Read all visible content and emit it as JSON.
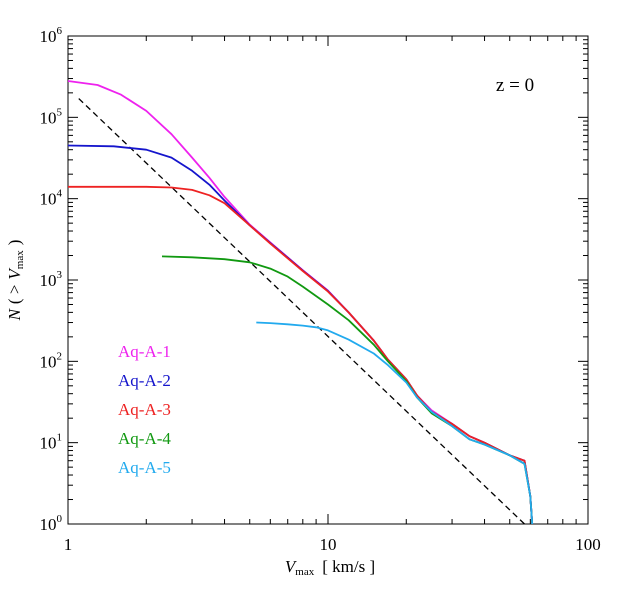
{
  "chart_data": {
    "type": "line",
    "xscale": "log",
    "yscale": "log",
    "xlim": [
      1,
      100
    ],
    "ylim": [
      1,
      1000000
    ],
    "grid": false,
    "legend_position": "bottom-left",
    "xlabel": {
      "main": "V",
      "sub": "max",
      "units": "[ km/s ]"
    },
    "ylabel": {
      "pre": "N",
      "open": "( >",
      "main": "V",
      "sub": "max",
      "close": ")"
    },
    "annotation": "z = 0",
    "x_ticks": [
      {
        "value": 1,
        "label": "1"
      },
      {
        "value": 10,
        "label": "10"
      },
      {
        "value": 100,
        "label": "100"
      }
    ],
    "y_ticks": [
      {
        "value": 1,
        "base": "10",
        "exp": "0"
      },
      {
        "value": 10,
        "base": "10",
        "exp": "1"
      },
      {
        "value": 100,
        "base": "10",
        "exp": "2"
      },
      {
        "value": 1000,
        "base": "10",
        "exp": "3"
      },
      {
        "value": 10000,
        "base": "10",
        "exp": "4"
      },
      {
        "value": 100000,
        "base": "10",
        "exp": "5"
      },
      {
        "value": 1000000,
        "base": "10",
        "exp": "6"
      }
    ],
    "reference_line": {
      "style": "dashed",
      "color": "#000000",
      "x": [
        1.1,
        57
      ],
      "y": [
        170000,
        1
      ]
    },
    "series": [
      {
        "name": "Aq-A-1",
        "color": "#ee22ee",
        "x": [
          1.0,
          1.3,
          1.6,
          2.0,
          2.5,
          3.0,
          3.5,
          4.0,
          5.0,
          6.0,
          7.0,
          8.0,
          10.0,
          12.0,
          15.0,
          17.0,
          20.0,
          22.0,
          25.0,
          30.0,
          35.0,
          40.0,
          50.0,
          57.0,
          60.0,
          61.0
        ],
        "y": [
          280000,
          250000,
          190000,
          120000,
          62000,
          32000,
          18000,
          10500,
          4800,
          2900,
          1900,
          1320,
          740,
          400,
          180,
          105,
          60,
          38,
          25,
          17,
          12,
          10,
          7,
          6,
          2.2,
          1
        ]
      },
      {
        "name": "Aq-A-2",
        "color": "#1515cc",
        "x": [
          1.0,
          1.5,
          2.0,
          2.5,
          3.0,
          3.5,
          4.0,
          5.0,
          6.0,
          7.0,
          8.0,
          10.0,
          12.0,
          15.0,
          17.0,
          20.0,
          22.0,
          25.0,
          30.0,
          35.0,
          40.0,
          50.0,
          57.0,
          60.0,
          61.0
        ],
        "y": [
          45000,
          44000,
          40000,
          32000,
          22000,
          14800,
          9500,
          4700,
          2850,
          1880,
          1310,
          730,
          400,
          180,
          105,
          60,
          38,
          24,
          17,
          12,
          10,
          7,
          6,
          2.2,
          1
        ]
      },
      {
        "name": "Aq-A-3",
        "color": "#ee2222",
        "x": [
          1.0,
          2.0,
          2.5,
          3.0,
          3.5,
          4.0,
          5.0,
          6.0,
          7.0,
          8.0,
          10.0,
          12.0,
          15.0,
          17.0,
          20.0,
          22.0,
          25.0,
          30.0,
          35.0,
          40.0,
          50.0,
          57.0,
          60.0,
          61.0
        ],
        "y": [
          14000,
          14000,
          13700,
          12800,
          11000,
          8800,
          4700,
          2800,
          1850,
          1290,
          720,
          400,
          180,
          105,
          60,
          38,
          24,
          17,
          12,
          10,
          7,
          6,
          2.2,
          1
        ]
      },
      {
        "name": "Aq-A-4",
        "color": "#119911",
        "x": [
          2.3,
          3.0,
          4.0,
          5.0,
          6.0,
          7.0,
          8.0,
          10.0,
          12.0,
          15.0,
          17.0,
          20.0,
          22.0,
          25.0,
          30.0,
          35.0,
          40.0,
          50.0,
          57.0,
          60.0,
          61.0
        ],
        "y": [
          1950,
          1900,
          1800,
          1650,
          1380,
          1100,
          830,
          500,
          320,
          160,
          100,
          57,
          36,
          23,
          16,
          11,
          9.5,
          7,
          5.5,
          2.2,
          1
        ]
      },
      {
        "name": "Aq-A-5",
        "color": "#22aaee",
        "x": [
          5.3,
          6.0,
          7.0,
          8.0,
          9.0,
          10.0,
          12.0,
          15.0,
          17.0,
          20.0,
          22.0,
          25.0,
          30.0,
          35.0,
          40.0,
          50.0,
          57.0,
          60.0,
          61.0
        ],
        "y": [
          300,
          295,
          285,
          275,
          262,
          240,
          185,
          125,
          90,
          55,
          36,
          24,
          16,
          11,
          9.5,
          7,
          5.5,
          2.2,
          1
        ]
      }
    ]
  }
}
